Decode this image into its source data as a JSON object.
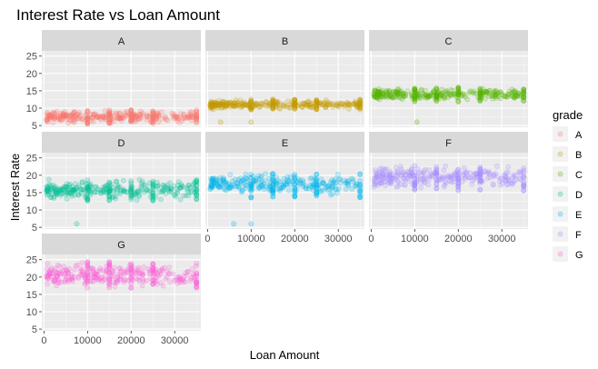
{
  "chart_data": {
    "type": "scatter",
    "title": "Interest Rate vs Loan Amount",
    "xlabel": "Loan Amount",
    "ylabel": "Interest Rate",
    "facet_by": "grade",
    "facet_layout": "3 columns x 3 rows",
    "xlim": [
      -500,
      36000
    ],
    "ylim": [
      4.5,
      26.5
    ],
    "x_ticks": [
      0,
      10000,
      20000,
      30000
    ],
    "y_ticks": [
      5,
      10,
      15,
      20,
      25
    ],
    "grid": true,
    "point_alpha": 0.2,
    "legend": {
      "title": "grade",
      "position": "right",
      "entries": [
        "A",
        "B",
        "C",
        "D",
        "E",
        "F",
        "G"
      ]
    },
    "panels": [
      {
        "grade": "A",
        "color": "#F8766D",
        "rate_min": 5.4,
        "rate_max": 9.6,
        "rate_center": 7.5,
        "x_max": 35000,
        "outliers": []
      },
      {
        "grade": "B",
        "color": "#C49A00",
        "rate_min": 9.5,
        "rate_max": 12.6,
        "rate_center": 11.0,
        "x_max": 35000,
        "outliers": [
          [
            3000,
            6.0
          ],
          [
            10000,
            6.0
          ]
        ]
      },
      {
        "grade": "C",
        "color": "#53B400",
        "rate_min": 11.8,
        "rate_max": 16.0,
        "rate_center": 13.9,
        "x_max": 35000,
        "outliers": [
          [
            10500,
            6.0
          ]
        ]
      },
      {
        "grade": "D",
        "color": "#00C094",
        "rate_min": 12.5,
        "rate_max": 18.8,
        "rate_center": 15.8,
        "x_max": 35000,
        "outliers": [
          [
            7500,
            6.0
          ]
        ]
      },
      {
        "grade": "E",
        "color": "#00B6EB",
        "rate_min": 13.5,
        "rate_max": 20.5,
        "rate_center": 17.5,
        "x_max": 35000,
        "outliers": [
          [
            6000,
            6.0
          ],
          [
            10000,
            6.0
          ]
        ]
      },
      {
        "grade": "F",
        "color": "#A58AFF",
        "rate_min": 15.5,
        "rate_max": 22.8,
        "rate_center": 19.5,
        "x_max": 35000,
        "outliers": []
      },
      {
        "grade": "G",
        "color": "#FB61D7",
        "rate_min": 16.5,
        "rate_max": 24.5,
        "rate_center": 20.5,
        "x_max": 35000,
        "outliers": []
      }
    ]
  }
}
